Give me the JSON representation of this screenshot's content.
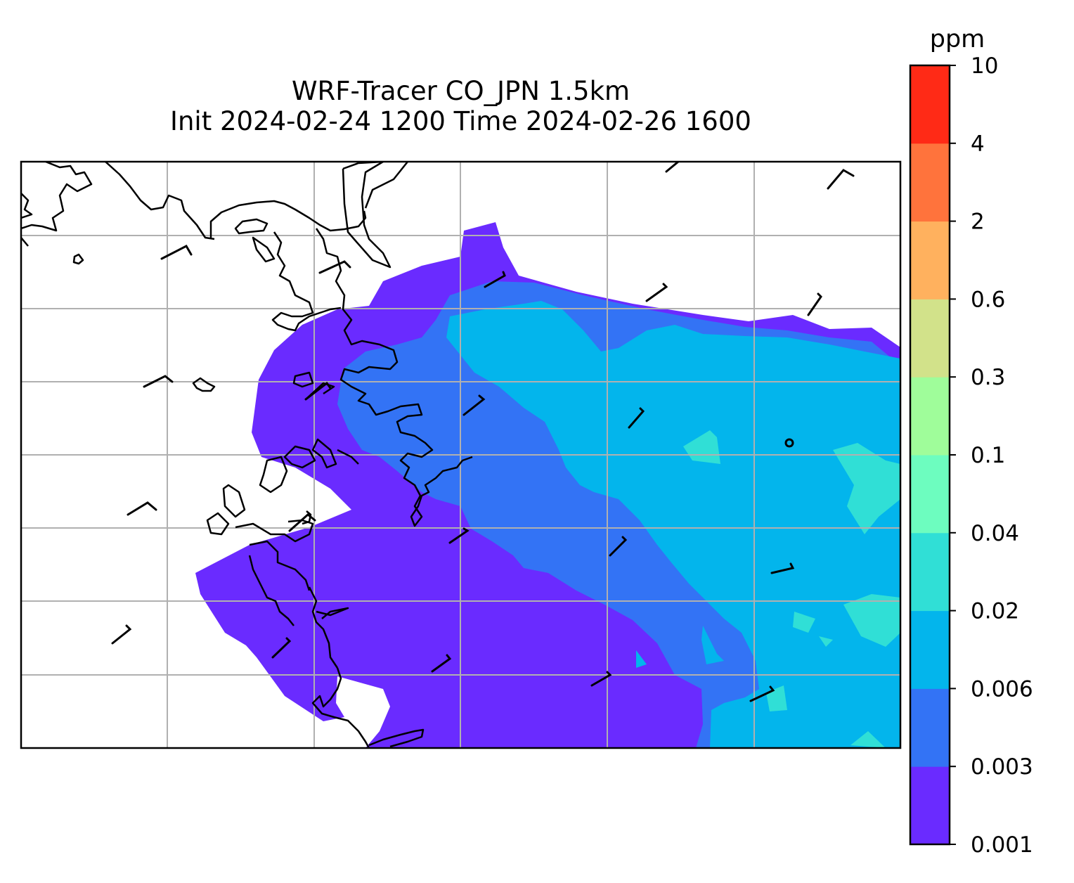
{
  "title": {
    "line1": "WRF-Tracer CO_JPN 1.5km",
    "line2": "Init 2024-02-24 1200 Time 2024-02-26 1600"
  },
  "colorbar": {
    "unit": "ppm",
    "levels": [
      "0.001",
      "0.003",
      "0.006",
      "0.02",
      "0.04",
      "0.1",
      "0.3",
      "0.6",
      "2",
      "4",
      "10"
    ],
    "colors": [
      "#6a2bff",
      "#3373f5",
      "#03b5ec",
      "#30dfd6",
      "#6dfdbf",
      "#9ffd9a",
      "#d2e28a",
      "#ffb15e",
      "#ff733c",
      "#ff2a16"
    ]
  },
  "map": {
    "background": "#ffffff",
    "gridline_color": "#b0b0b0",
    "coastline_color": "#000000",
    "barb_color": "#000000",
    "gridlines": true,
    "field_levels_shown": [
      "0.001",
      "0.003",
      "0.006",
      "0.02"
    ]
  }
}
